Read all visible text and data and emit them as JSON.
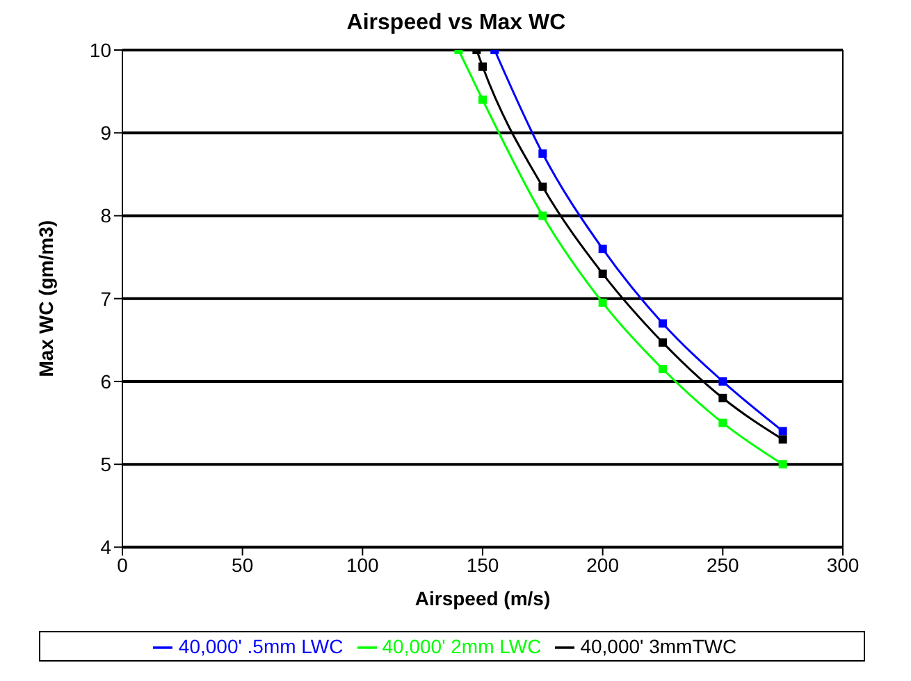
{
  "chart_data": {
    "type": "line",
    "title": "Airspeed vs Max WC",
    "xlabel": "Airspeed (m/s)",
    "ylabel": "Max WC (gm/m3)",
    "xlim": [
      0,
      300
    ],
    "xticks": [
      0,
      50,
      100,
      150,
      200,
      250,
      300
    ],
    "ylim": [
      4,
      10
    ],
    "yticks": [
      4,
      5,
      6,
      7,
      8,
      9,
      10
    ],
    "grid": "y",
    "legend": "bottom",
    "marker": "square",
    "line_style": "solid",
    "series": [
      {
        "name": "40,000' 2mm LWC",
        "color": "#00ff00",
        "x": [
          140,
          150,
          175,
          200,
          225,
          250,
          275
        ],
        "values": [
          10,
          9.4,
          8,
          6.95,
          6.15,
          5.5,
          5
        ]
      },
      {
        "name": "40,000' .5mm LWC",
        "color": "#0000ff",
        "x": [
          155,
          175,
          200,
          225,
          250,
          275
        ],
        "values": [
          10,
          8.75,
          7.6,
          6.7,
          6,
          5.4
        ]
      },
      {
        "name": "40,000' 3mmTWC",
        "color": "#000000",
        "x": [
          147.5,
          150,
          175,
          200,
          225,
          250,
          275
        ],
        "values": [
          10,
          9.8,
          8.35,
          7.3,
          6.47,
          5.8,
          5.3
        ]
      }
    ]
  }
}
